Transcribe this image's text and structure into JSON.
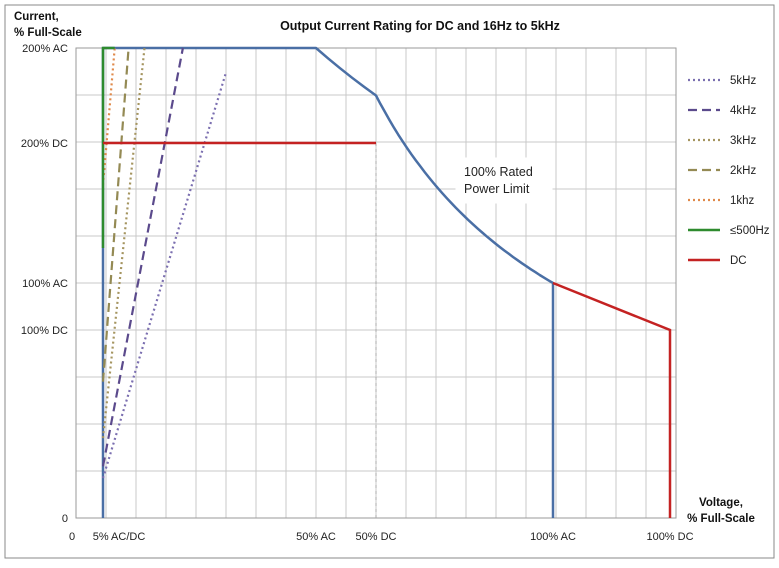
{
  "chart_data": {
    "type": "line",
    "title": "Output Current Rating for DC and 16Hz to 5kHz",
    "ylabel": [
      "Current,",
      "% Full-Scale"
    ],
    "xlabel": [
      "Voltage,",
      "% Full-Scale"
    ],
    "ylim": [
      0,
      200
    ],
    "y_scale_note": "non-linear display axis",
    "x_ticks": [
      {
        "label": "0",
        "value": 0
      },
      {
        "label": "5% AC/DC",
        "value": 5
      },
      {
        "label": "50% AC",
        "value": 45
      },
      {
        "label": "50% DC",
        "value": 50
      },
      {
        "label": "100% AC",
        "value": 90
      },
      {
        "label": "100% DC",
        "value": 100
      }
    ],
    "y_ticks": [
      {
        "label": "200% AC",
        "value": 200
      },
      {
        "label": "200% DC",
        "value": 160
      },
      {
        "label": "100% AC",
        "value": 100
      },
      {
        "label": "100% DC",
        "value": 80
      },
      {
        "label": "0",
        "value": 0
      }
    ],
    "grid": true,
    "legend_position": "right",
    "annotation": [
      "100% Rated",
      "Power Limit"
    ],
    "series": [
      {
        "name": "5kHz",
        "color": "#7b6fb0",
        "dash": "dotted",
        "points": [
          [
            5,
            17
          ],
          [
            28,
            189
          ]
        ]
      },
      {
        "name": "4kHz",
        "color": "#5b4a8c",
        "dash": "dashed",
        "points": [
          [
            5,
            22
          ],
          [
            20,
            200
          ]
        ]
      },
      {
        "name": "3kHz",
        "color": "#a59560",
        "dash": "dotted",
        "points": [
          [
            5,
            34
          ],
          [
            12.8,
            200
          ]
        ]
      },
      {
        "name": "2kHz",
        "color": "#948a54",
        "dash": "dashed",
        "points": [
          [
            5,
            58
          ],
          [
            9.8,
            200
          ]
        ]
      },
      {
        "name": "1khz",
        "color": "#e0894a",
        "dash": "dotted",
        "points": [
          [
            5,
            142
          ],
          [
            7.2,
            200
          ]
        ]
      },
      {
        "name": "≤500Hz",
        "color": "#2e8b2e",
        "dash": "solid",
        "points": [
          [
            5,
            115
          ],
          [
            5,
            200
          ],
          [
            7.2,
            200
          ]
        ]
      },
      {
        "name": "DC",
        "color": "#c42222",
        "dash": "solid",
        "points": [
          [
            5,
            160
          ],
          [
            50,
            160
          ],
          [
            50,
            160
          ],
          [
            90,
            100
          ],
          [
            100,
            80
          ],
          [
            100,
            0
          ]
        ]
      }
    ],
    "power_limit_line": {
      "color": "#4a6fa5",
      "points": [
        [
          5,
          0
        ],
        [
          5,
          200
        ],
        [
          45,
          200
        ],
        [
          50,
          160
        ],
        [
          60,
          140
        ],
        [
          70,
          124
        ],
        [
          80,
          111
        ],
        [
          90,
          100
        ],
        [
          90,
          0
        ]
      ]
    }
  }
}
